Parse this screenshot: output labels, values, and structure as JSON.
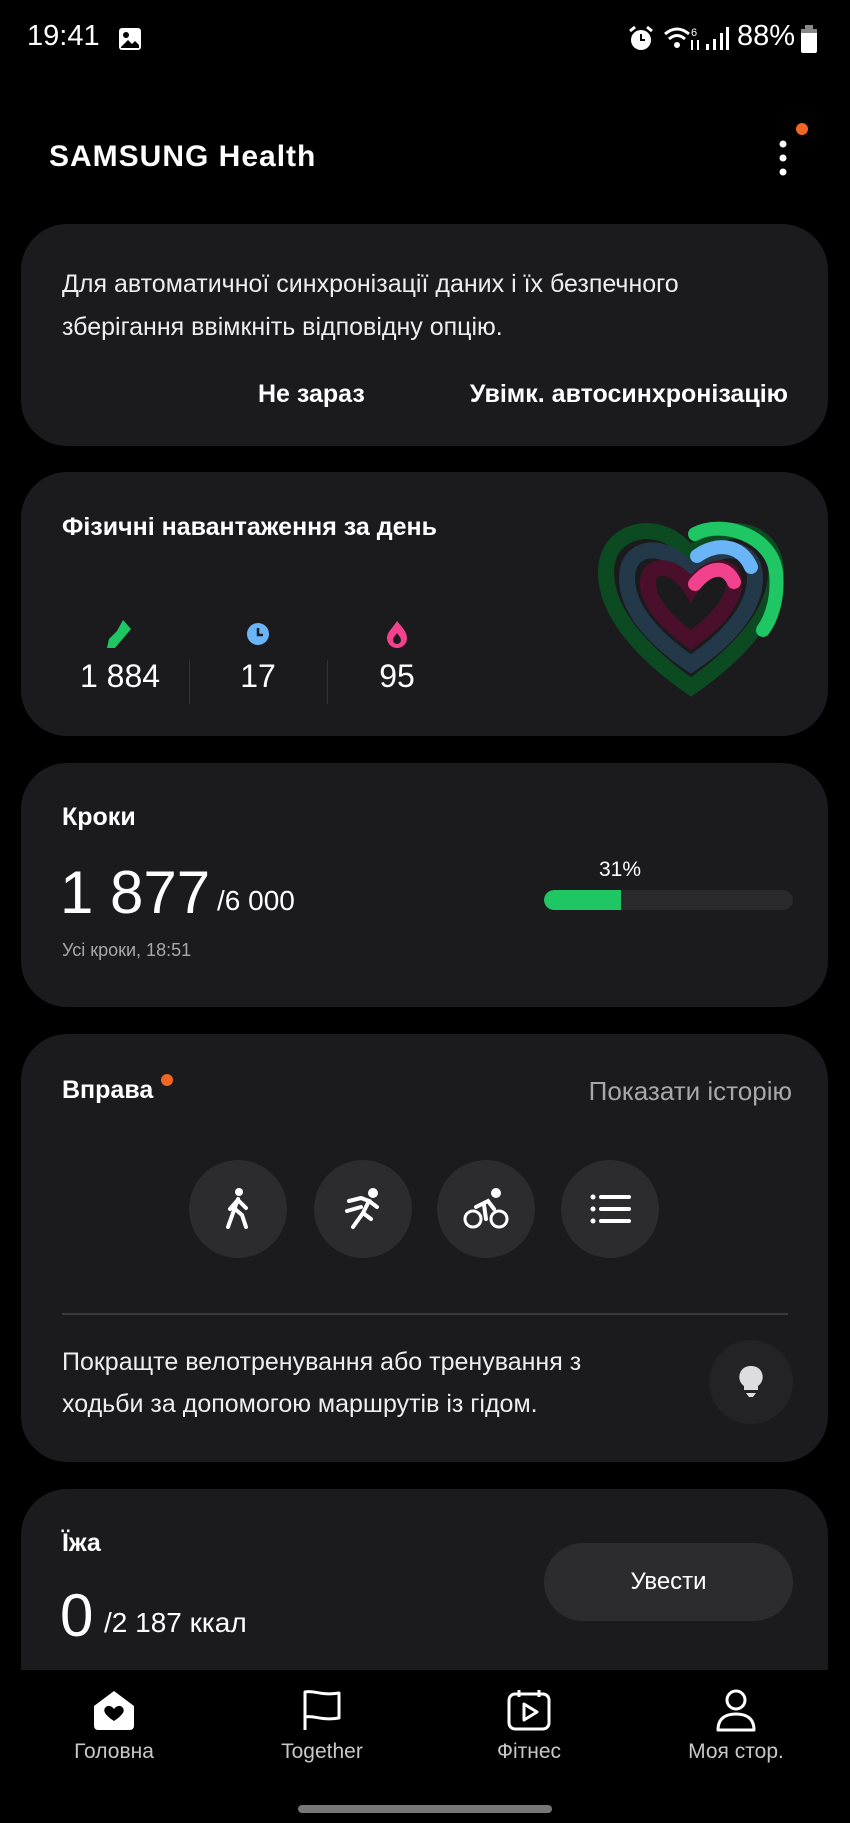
{
  "status_bar": {
    "time": "19:41",
    "battery": "88%",
    "icons": [
      "gallery-icon",
      "alarm-icon",
      "wifi-icon",
      "signal-icon",
      "battery-icon"
    ]
  },
  "header": {
    "logo": "SAMSUNG Health",
    "menu_icon": "more-vertical-icon",
    "menu_badge_color": "#f26522"
  },
  "sync_card": {
    "line1": "Для автоматичної синхронізації даних і їх безпечного",
    "line2": "зберігання ввімкніть відповідну опцію.",
    "not_now": "Не зараз",
    "enable": "Увімк. автосинхронізацію"
  },
  "activity_card": {
    "title": "Фізичні навантаження за день",
    "stats": [
      {
        "icon": "shoe-icon",
        "value": "1 884",
        "color": "#1ec764"
      },
      {
        "icon": "clock-icon",
        "value": "17",
        "color": "#6ab4f8"
      },
      {
        "icon": "flame-icon",
        "value": "95",
        "color": "#f2428e"
      }
    ],
    "rings": {
      "steps_progress": 0.31,
      "active_time_progress": 0.3,
      "calories_progress": 0.25,
      "colors": [
        "#1ec764",
        "#6ab4f8",
        "#f2428e"
      ]
    }
  },
  "steps_card": {
    "title": "Кроки",
    "value": "1 877",
    "goal": "/6 000",
    "percent_label": "31%",
    "percent": 31,
    "subtitle": "Усі кроки, 18:51",
    "bar_color": "#1ec764"
  },
  "exercise_card": {
    "title": "Вправа",
    "history": "Показати історію",
    "buttons": [
      "walking-icon",
      "running-icon",
      "cycling-icon",
      "list-icon"
    ],
    "tip_line1": "Покращте велотренування або тренування з",
    "tip_line2": "ходьби за допомогою маршрутів із гідом."
  },
  "food_card": {
    "title": "Їжа",
    "value": "0",
    "goal": "/2 187 ккал",
    "button": "Увести"
  },
  "bottom_nav": [
    {
      "label": "Головна",
      "icon": "home-heart-icon",
      "active": true
    },
    {
      "label": "Together",
      "icon": "flag-icon"
    },
    {
      "label": "Фітнес",
      "icon": "fitness-video-icon"
    },
    {
      "label": "Моя стор.",
      "icon": "person-icon"
    }
  ]
}
